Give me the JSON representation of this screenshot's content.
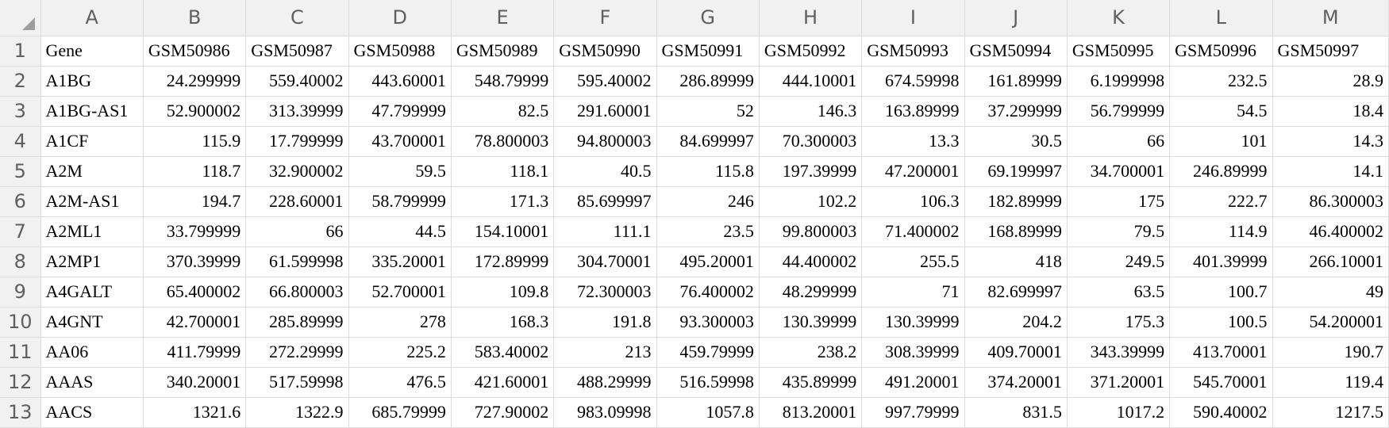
{
  "columns": [
    "A",
    "B",
    "C",
    "D",
    "E",
    "F",
    "G",
    "H",
    "I",
    "J",
    "K",
    "L",
    "M"
  ],
  "rows": [
    {
      "num": "1",
      "cells": [
        "Gene",
        "GSM50986",
        "GSM50987",
        "GSM50988",
        "GSM50989",
        "GSM50990",
        "GSM50991",
        "GSM50992",
        "GSM50993",
        "GSM50994",
        "GSM50995",
        "GSM50996",
        "GSM50997"
      ]
    },
    {
      "num": "2",
      "cells": [
        "A1BG",
        "24.299999",
        "559.40002",
        "443.60001",
        "548.79999",
        "595.40002",
        "286.89999",
        "444.10001",
        "674.59998",
        "161.89999",
        "6.1999998",
        "232.5",
        "28.9"
      ]
    },
    {
      "num": "3",
      "cells": [
        "A1BG-AS1",
        "52.900002",
        "313.39999",
        "47.799999",
        "82.5",
        "291.60001",
        "52",
        "146.3",
        "163.89999",
        "37.299999",
        "56.799999",
        "54.5",
        "18.4"
      ]
    },
    {
      "num": "4",
      "cells": [
        "A1CF",
        "115.9",
        "17.799999",
        "43.700001",
        "78.800003",
        "94.800003",
        "84.699997",
        "70.300003",
        "13.3",
        "30.5",
        "66",
        "101",
        "14.3"
      ]
    },
    {
      "num": "5",
      "cells": [
        "A2M",
        "118.7",
        "32.900002",
        "59.5",
        "118.1",
        "40.5",
        "115.8",
        "197.39999",
        "47.200001",
        "69.199997",
        "34.700001",
        "246.89999",
        "14.1"
      ]
    },
    {
      "num": "6",
      "cells": [
        "A2M-AS1",
        "194.7",
        "228.60001",
        "58.799999",
        "171.3",
        "85.699997",
        "246",
        "102.2",
        "106.3",
        "182.89999",
        "175",
        "222.7",
        "86.300003"
      ]
    },
    {
      "num": "7",
      "cells": [
        "A2ML1",
        "33.799999",
        "66",
        "44.5",
        "154.10001",
        "111.1",
        "23.5",
        "99.800003",
        "71.400002",
        "168.89999",
        "79.5",
        "114.9",
        "46.400002"
      ]
    },
    {
      "num": "8",
      "cells": [
        "A2MP1",
        "370.39999",
        "61.599998",
        "335.20001",
        "172.89999",
        "304.70001",
        "495.20001",
        "44.400002",
        "255.5",
        "418",
        "249.5",
        "401.39999",
        "266.10001"
      ]
    },
    {
      "num": "9",
      "cells": [
        "A4GALT",
        "65.400002",
        "66.800003",
        "52.700001",
        "109.8",
        "72.300003",
        "76.400002",
        "48.299999",
        "71",
        "82.699997",
        "63.5",
        "100.7",
        "49"
      ]
    },
    {
      "num": "10",
      "cells": [
        "A4GNT",
        "42.700001",
        "285.89999",
        "278",
        "168.3",
        "191.8",
        "93.300003",
        "130.39999",
        "130.39999",
        "204.2",
        "175.3",
        "100.5",
        "54.200001"
      ]
    },
    {
      "num": "11",
      "cells": [
        "AA06",
        "411.79999",
        "272.29999",
        "225.2",
        "583.40002",
        "213",
        "459.79999",
        "238.2",
        "308.39999",
        "409.70001",
        "343.39999",
        "413.70001",
        "190.7"
      ]
    },
    {
      "num": "12",
      "cells": [
        "AAAS",
        "340.20001",
        "517.59998",
        "476.5",
        "421.60001",
        "488.29999",
        "516.59998",
        "435.89999",
        "491.20001",
        "374.20001",
        "371.20001",
        "545.70001",
        "119.4"
      ]
    },
    {
      "num": "13",
      "cells": [
        "AACS",
        "1321.6",
        "1322.9",
        "685.79999",
        "727.90002",
        "983.09998",
        "1057.8",
        "813.20001",
        "997.79999",
        "831.5",
        "1017.2",
        "590.40002",
        "1217.5"
      ]
    }
  ]
}
